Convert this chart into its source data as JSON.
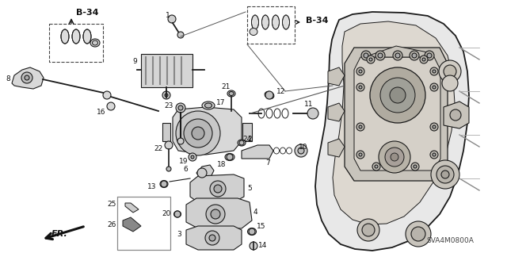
{
  "bg_color": "#ffffff",
  "line_color": "#1a1a1a",
  "diagram_code": "SVA4M0800A",
  "b34_label": "B-34",
  "fr_label": "FR.",
  "lw": 0.8,
  "lw_thick": 1.3
}
